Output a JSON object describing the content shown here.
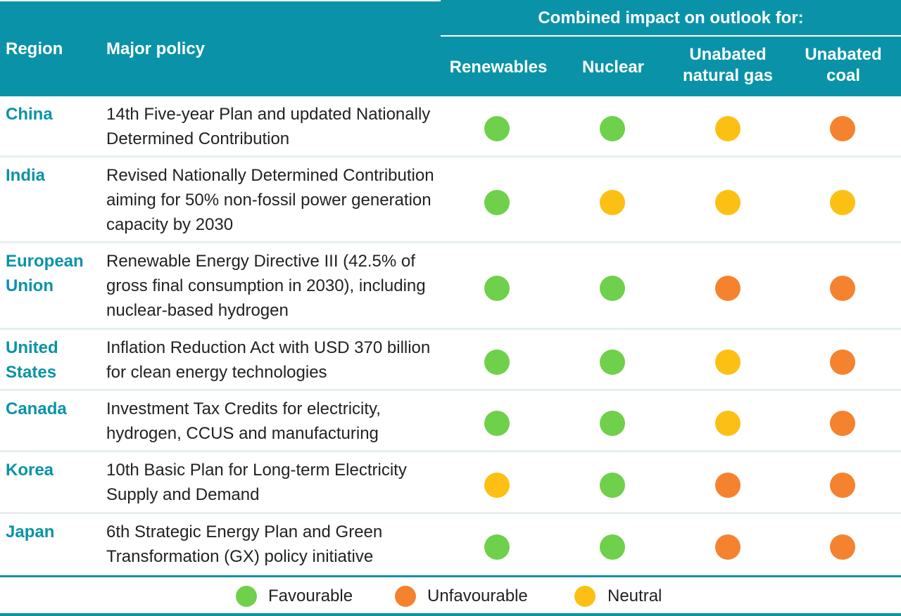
{
  "colors": {
    "header_bg": "#0a93a8",
    "region_text": "#0a93a8",
    "favourable": "#6fd04b",
    "unfavourable": "#f5822f",
    "neutral": "#fcc014"
  },
  "header": {
    "region": "Region",
    "policy": "Major policy",
    "combined": "Combined impact on outlook for:",
    "renewables": "Renewables",
    "nuclear": "Nuclear",
    "gas": "Unabated\nnatural gas",
    "coal": "Unabated\ncoal"
  },
  "rows": [
    {
      "region": "China",
      "policy": "14th Five-year Plan and updated Nationally Determined Contribution",
      "impacts": [
        "favourable",
        "favourable",
        "neutral",
        "unfavourable"
      ]
    },
    {
      "region": "India",
      "policy": "Revised Nationally Determined Contribution aiming for 50% non-fossil power generation capacity by 2030",
      "impacts": [
        "favourable",
        "neutral",
        "neutral",
        "neutral"
      ]
    },
    {
      "region": "European\nUnion",
      "policy": "Renewable Energy Directive III (42.5% of gross final consumption in 2030), including nuclear-based hydrogen",
      "impacts": [
        "favourable",
        "favourable",
        "unfavourable",
        "unfavourable"
      ]
    },
    {
      "region": "United\nStates",
      "policy": "Inflation Reduction Act with USD 370 billion for clean energy technologies",
      "impacts": [
        "favourable",
        "favourable",
        "neutral",
        "unfavourable"
      ]
    },
    {
      "region": "Canada",
      "policy": "Investment Tax Credits for electricity, hydrogen, CCUS and manufacturing",
      "impacts": [
        "favourable",
        "favourable",
        "neutral",
        "unfavourable"
      ]
    },
    {
      "region": "Korea",
      "policy": "10th Basic Plan for Long-term Electricity Supply and Demand",
      "impacts": [
        "neutral",
        "favourable",
        "unfavourable",
        "unfavourable"
      ]
    },
    {
      "region": "Japan",
      "policy": "6th Strategic Energy Plan and Green Transformation (GX) policy initiative",
      "impacts": [
        "favourable",
        "favourable",
        "unfavourable",
        "unfavourable"
      ]
    }
  ],
  "legend": {
    "favourable": "Favourable",
    "unfavourable": "Unfavourable",
    "neutral": "Neutral"
  }
}
